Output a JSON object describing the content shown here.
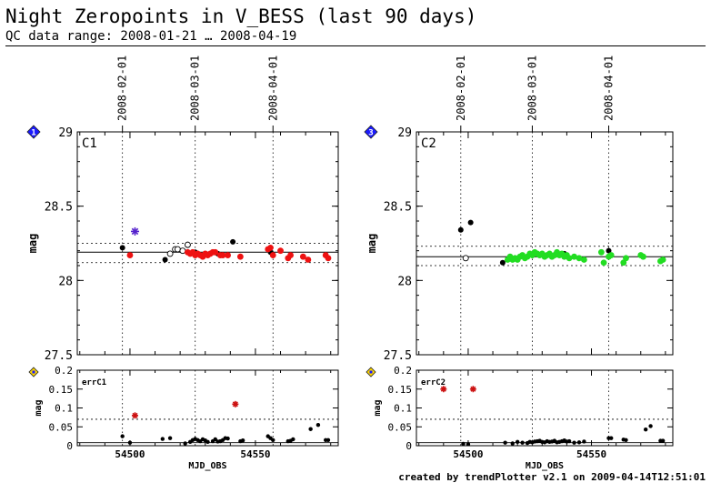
{
  "header": {
    "title": "Night Zeropoints in V_BESS (last 90 days)",
    "subtitle": "QC data range: 2008-01-21 … 2008-04-19",
    "footer": "created by trendPlotter v2.1 on 2009-04-14T12:51:01"
  },
  "colors": {
    "c1_fill": "#ee1111",
    "c2_fill": "#22dd22",
    "marker_blue": "#1a1aff",
    "marker_yellow": "#ffd800",
    "star_blue": "#5522cc",
    "star_red": "#cc1111"
  },
  "chart_data": [
    {
      "id": "zp-c1",
      "type": "scatter",
      "label": "C1",
      "badge": "1",
      "ylabel": "mag",
      "xlim": [
        54479,
        54583
      ],
      "ylim": [
        27.5,
        29
      ],
      "yticks": [
        27.5,
        28,
        28.5,
        29
      ],
      "date_ticks": [
        {
          "mjd": 54497,
          "label": "2008-02-01"
        },
        {
          "mjd": 54526,
          "label": "2008-03-01"
        },
        {
          "mjd": 54557,
          "label": "2008-04-01"
        }
      ],
      "median": 28.19,
      "band": [
        28.12,
        28.25
      ],
      "series": [
        {
          "style": "black",
          "x": [
            54497,
            54514,
            54526,
            54535,
            54541,
            54556
          ],
          "y": [
            28.22,
            28.14,
            28.19,
            28.18,
            28.26,
            28.19
          ]
        },
        {
          "style": "open",
          "x": [
            54516,
            54518,
            54519,
            54521,
            54523
          ],
          "y": [
            28.18,
            28.21,
            28.21,
            28.2,
            28.24
          ]
        },
        {
          "style": "red",
          "x": [
            54500,
            54523,
            54524,
            54525,
            54526,
            54527,
            54528,
            54529,
            54530,
            54531,
            54532,
            54533,
            54534,
            54536,
            54537,
            54539,
            54544,
            54555,
            54556,
            54557,
            54560,
            54563,
            54564,
            54569,
            54571,
            54578,
            54579
          ],
          "y": [
            28.17,
            28.19,
            28.18,
            28.19,
            28.17,
            28.18,
            28.17,
            28.16,
            28.18,
            28.17,
            28.18,
            28.19,
            28.19,
            28.17,
            28.17,
            28.17,
            28.16,
            28.21,
            28.22,
            28.17,
            28.2,
            28.15,
            28.17,
            28.16,
            28.14,
            28.17,
            28.15
          ]
        },
        {
          "style": "star-blue",
          "x": [
            54502
          ],
          "y": [
            28.33
          ]
        }
      ],
      "err": {
        "label": "errC1",
        "ylim": [
          0,
          0.2
        ],
        "yticks": [
          0,
          0.05,
          0.1,
          0.15,
          0.2
        ],
        "xticks": [
          54500,
          54550
        ],
        "xlabel": "MJD_OBS",
        "line": 0.07,
        "series": [
          {
            "style": "black",
            "x": [
              54497,
              54500,
              54513,
              54516,
              54522,
              54524,
              54525,
              54526,
              54527,
              54528,
              54529,
              54530,
              54531,
              54533,
              54534,
              54535,
              54536,
              54537,
              54538,
              54539,
              54544,
              54545,
              54555,
              54556,
              54557,
              54563,
              54564,
              54565,
              54572,
              54575,
              54578,
              54579
            ],
            "y": [
              0.025,
              0.008,
              0.018,
              0.02,
              0.006,
              0.01,
              0.015,
              0.018,
              0.015,
              0.012,
              0.017,
              0.014,
              0.01,
              0.012,
              0.017,
              0.011,
              0.012,
              0.015,
              0.02,
              0.019,
              0.012,
              0.014,
              0.025,
              0.02,
              0.015,
              0.012,
              0.013,
              0.017,
              0.044,
              0.055,
              0.015,
              0.015
            ]
          },
          {
            "style": "star-red",
            "x": [
              54502,
              54542
            ],
            "y": [
              0.08,
              0.11
            ]
          }
        ]
      }
    },
    {
      "id": "zp-c2",
      "type": "scatter",
      "label": "C2",
      "badge": "3",
      "ylabel": "mag",
      "xlim": [
        54479,
        54583
      ],
      "ylim": [
        27.5,
        29
      ],
      "yticks": [
        27.5,
        28,
        28.5,
        29
      ],
      "date_ticks": [
        {
          "mjd": 54497,
          "label": "2008-02-01"
        },
        {
          "mjd": 54526,
          "label": "2008-03-01"
        },
        {
          "mjd": 54557,
          "label": "2008-04-01"
        }
      ],
      "median": 28.16,
      "band": [
        28.1,
        28.23
      ],
      "series": [
        {
          "style": "black",
          "x": [
            54497,
            54501,
            54514,
            54539,
            54557
          ],
          "y": [
            28.34,
            28.39,
            28.12,
            28.18,
            28.2
          ]
        },
        {
          "style": "open",
          "x": [
            54499
          ],
          "y": [
            28.15
          ]
        },
        {
          "style": "green",
          "x": [
            54516,
            54517,
            54518,
            54519,
            54520,
            54521,
            54522,
            54523,
            54524,
            54525,
            54526,
            54527,
            54528,
            54529,
            54530,
            54531,
            54532,
            54533,
            54534,
            54535,
            54536,
            54537,
            54538,
            54539,
            54540,
            54541,
            54543,
            54545,
            54547,
            54554,
            54555,
            54557,
            54558,
            54563,
            54564,
            54570,
            54571,
            54578,
            54579
          ],
          "y": [
            28.14,
            28.16,
            28.14,
            28.15,
            28.14,
            28.16,
            28.17,
            28.15,
            28.16,
            28.18,
            28.17,
            28.19,
            28.18,
            28.17,
            28.18,
            28.16,
            28.17,
            28.18,
            28.16,
            28.17,
            28.19,
            28.17,
            28.18,
            28.16,
            28.17,
            28.15,
            28.16,
            28.15,
            28.14,
            28.19,
            28.12,
            28.16,
            28.17,
            28.12,
            28.15,
            28.17,
            28.16,
            28.13,
            28.14
          ]
        }
      ],
      "err": {
        "label": "errC2",
        "ylim": [
          0,
          0.2
        ],
        "yticks": [
          0,
          0.05,
          0.1,
          0.15,
          0.2
        ],
        "xticks": [
          54500,
          54550
        ],
        "xlabel": "MJD_OBS",
        "line": 0.07,
        "series": [
          {
            "style": "black",
            "x": [
              54498,
              54500,
              54515,
              54518,
              54520,
              54522,
              54524,
              54525,
              54526,
              54527,
              54528,
              54529,
              54530,
              54531,
              54532,
              54533,
              54534,
              54535,
              54536,
              54537,
              54538,
              54539,
              54540,
              54541,
              54543,
              54545,
              54547,
              54557,
              54558,
              54563,
              54564,
              54572,
              54574,
              54578,
              54579
            ],
            "y": [
              0.005,
              0.004,
              0.008,
              0.006,
              0.01,
              0.008,
              0.007,
              0.01,
              0.009,
              0.011,
              0.012,
              0.013,
              0.01,
              0.009,
              0.012,
              0.01,
              0.011,
              0.013,
              0.009,
              0.01,
              0.012,
              0.014,
              0.011,
              0.012,
              0.008,
              0.009,
              0.011,
              0.02,
              0.02,
              0.016,
              0.015,
              0.043,
              0.052,
              0.013,
              0.013
            ]
          },
          {
            "style": "star-red",
            "x": [
              54490,
              54502
            ],
            "y": [
              0.15,
              0.15
            ]
          }
        ]
      }
    }
  ]
}
